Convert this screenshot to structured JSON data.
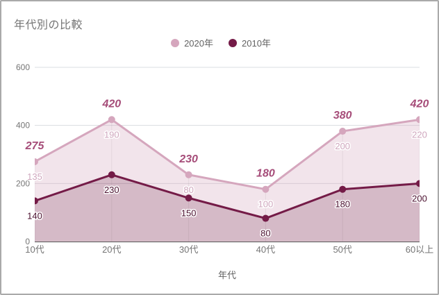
{
  "chart_data": {
    "type": "area",
    "stacked": true,
    "title": "年代別の比較",
    "xlabel": "年代",
    "ylabel": "",
    "categories": [
      "10代",
      "20代",
      "30代",
      "40代",
      "50代",
      "60以上"
    ],
    "series": [
      {
        "name": "2020年",
        "values": [
          135,
          190,
          80,
          100,
          200,
          220
        ],
        "color": "#d5a6bd",
        "fill_opacity": 0.3,
        "value_label_color": "#cfa6bd"
      },
      {
        "name": "2010年",
        "values": [
          140,
          230,
          150,
          80,
          180,
          200
        ],
        "color": "#741b47",
        "fill_opacity": 0.3,
        "value_label_color": "#4c1130"
      }
    ],
    "totals": [
      275,
      420,
      230,
      180,
      380,
      420
    ],
    "total_label_color": "#a64d79",
    "y_axis": {
      "min": 0,
      "max": 600,
      "ticks": [
        0,
        200,
        400,
        600
      ]
    },
    "legend_position": "top",
    "grid": true,
    "grid_color": "#dadce0",
    "axis_line_color": "#595959",
    "tick_text_color": "#757575",
    "title_color": "#757575"
  }
}
